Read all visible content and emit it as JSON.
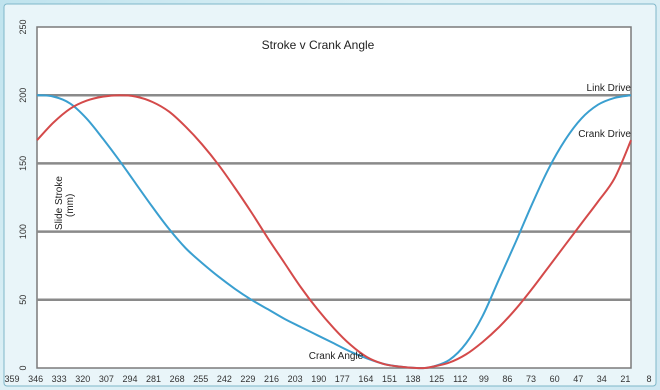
{
  "chart_data": {
    "type": "line",
    "title": "Stroke v Crank Angle",
    "xlabel": "Crank Angle",
    "ylabel": "Slide Stroke\n(mm)",
    "ylim": [
      0,
      250
    ],
    "yticks": [
      0,
      50,
      100,
      150,
      200,
      250
    ],
    "grid": true,
    "x_tick_labels": [
      "359",
      "346",
      "333",
      "320",
      "307",
      "294",
      "281",
      "268",
      "255",
      "242",
      "229",
      "216",
      "203",
      "190",
      "177",
      "164",
      "151",
      "138",
      "125",
      "112",
      "99",
      "86",
      "73",
      "60",
      "47",
      "34",
      "21",
      "8"
    ],
    "x_range": [
      360,
      0
    ],
    "series": [
      {
        "name": "Link Drive",
        "color": "#3a9fd0",
        "x": [
          360,
          350,
          340,
          330,
          320,
          310,
          300,
          290,
          280,
          270,
          260,
          250,
          240,
          230,
          220,
          210,
          200,
          190,
          180,
          170,
          160,
          150,
          140,
          130,
          125,
          120,
          110,
          100,
          90,
          80,
          70,
          60,
          50,
          40,
          30,
          20,
          10,
          0
        ],
        "y": [
          200,
          199,
          194,
          183,
          168,
          152,
          135,
          118,
          102,
          88,
          77,
          67,
          58,
          50,
          43,
          36,
          30,
          24,
          18,
          12,
          7,
          3,
          1,
          0,
          0,
          1,
          6,
          18,
          38,
          65,
          92,
          120,
          146,
          167,
          183,
          193,
          198,
          200
        ]
      },
      {
        "name": "Crank Drive",
        "color": "#d44a4a",
        "x": [
          360,
          350,
          340,
          330,
          320,
          310,
          300,
          290,
          280,
          270,
          260,
          250,
          240,
          230,
          220,
          210,
          200,
          190,
          180,
          170,
          160,
          150,
          140,
          130,
          125,
          120,
          110,
          100,
          90,
          80,
          70,
          60,
          50,
          40,
          30,
          20,
          10,
          0
        ],
        "y": [
          167,
          180,
          190,
          196,
          199,
          200,
          199,
          195,
          188,
          177,
          164,
          149,
          132,
          114,
          95,
          77,
          59,
          43,
          29,
          17,
          8,
          3,
          1,
          0,
          0,
          1,
          4,
          10,
          19,
          30,
          43,
          58,
          74,
          90,
          106,
          122,
          139,
          167
        ]
      }
    ]
  }
}
